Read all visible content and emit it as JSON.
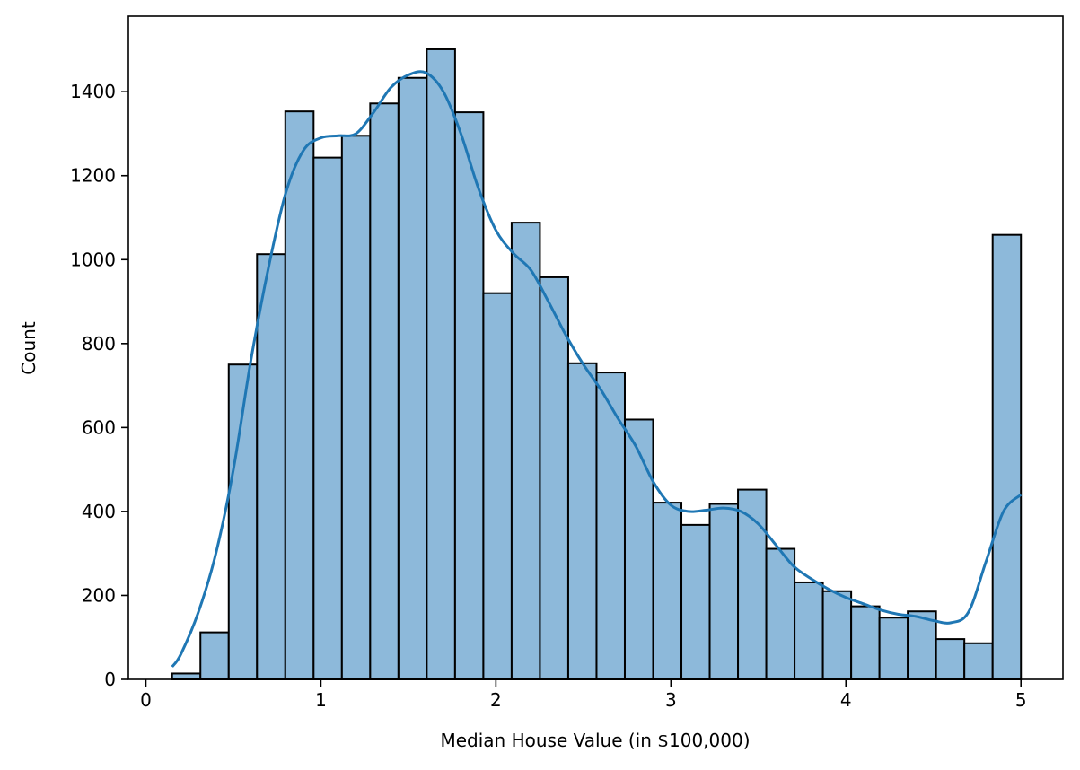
{
  "chart_data": {
    "type": "bar",
    "title": "",
    "xlabel": "Median House Value (in $100,000)",
    "ylabel": "Count",
    "xlim": [
      -0.1,
      5.24
    ],
    "ylim": [
      0,
      1580
    ],
    "xticks": [
      0,
      1,
      2,
      3,
      4,
      5
    ],
    "yticks": [
      0,
      200,
      400,
      600,
      800,
      1000,
      1200,
      1400
    ],
    "grid": false,
    "legend": "none",
    "bin_start": 0.14999,
    "bin_width": 0.161667,
    "values": [
      14,
      112,
      750,
      1013,
      1353,
      1243,
      1295,
      1372,
      1433,
      1501,
      1351,
      920,
      1088,
      958,
      753,
      731,
      619,
      421,
      368,
      418,
      452,
      311,
      231,
      210,
      174,
      147,
      162,
      96,
      86,
      1059
    ],
    "kde": {
      "x": [
        0.15,
        0.2,
        0.3,
        0.4,
        0.5,
        0.6,
        0.7,
        0.8,
        0.9,
        1.0,
        1.1,
        1.2,
        1.3,
        1.4,
        1.5,
        1.6,
        1.7,
        1.8,
        1.9,
        2.0,
        2.1,
        2.2,
        2.3,
        2.4,
        2.5,
        2.6,
        2.7,
        2.8,
        2.9,
        3.0,
        3.1,
        3.2,
        3.3,
        3.4,
        3.5,
        3.6,
        3.7,
        3.8,
        3.9,
        4.0,
        4.1,
        4.2,
        4.3,
        4.4,
        4.5,
        4.6,
        4.7,
        4.8,
        4.9,
        5.0
      ],
      "y": [
        30,
        60,
        160,
        300,
        500,
        760,
        980,
        1160,
        1260,
        1290,
        1295,
        1300,
        1350,
        1410,
        1440,
        1445,
        1400,
        1300,
        1170,
        1070,
        1015,
        975,
        900,
        820,
        750,
        690,
        620,
        555,
        470,
        415,
        400,
        403,
        408,
        400,
        370,
        320,
        270,
        240,
        215,
        195,
        180,
        165,
        155,
        150,
        140,
        135,
        160,
        280,
        400,
        440
      ]
    },
    "colors": {
      "bar_fill": "#8db9da",
      "bar_edge": "#000000",
      "kde_line": "#1f77b4"
    }
  }
}
